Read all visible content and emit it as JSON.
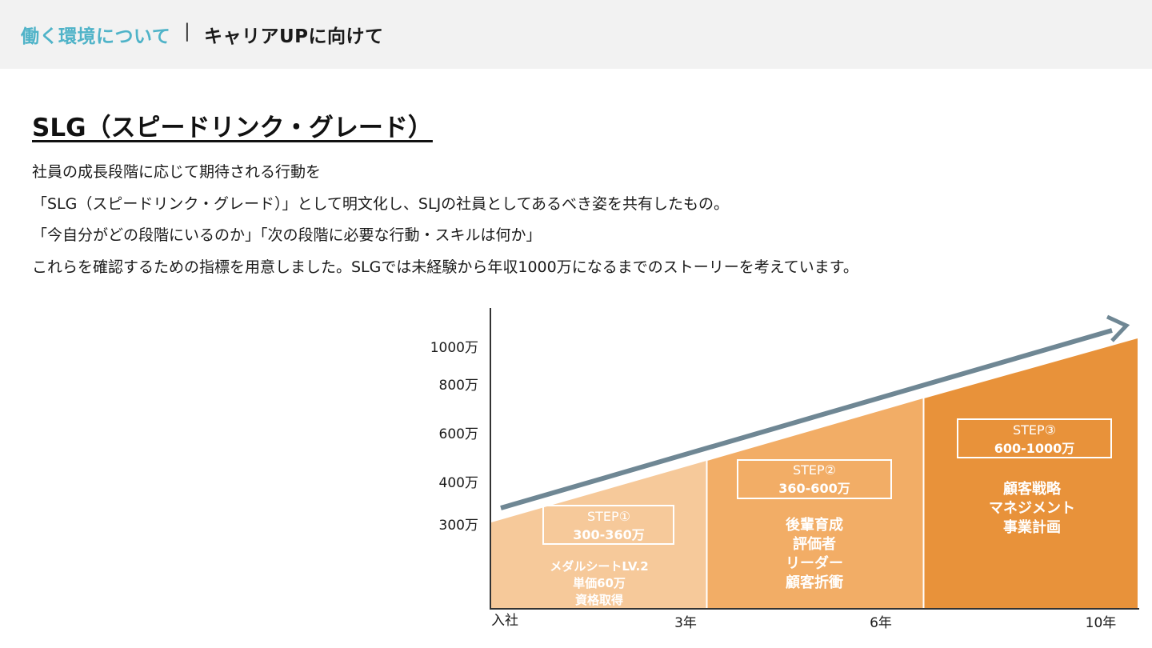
{
  "header": {
    "section": "働く環境について",
    "separator": "|",
    "page": "キャリアUPに向けて"
  },
  "title": "SLG（スピードリンク・グレード）",
  "description": [
    "社員の成長段階に応じて期待される行動を",
    "「SLG（スピードリンク・グレード）」として明文化し、SLJの社員としてあるべき姿を共有したもの。",
    "「今自分がどの段階にいるのか」「次の段階に必要な行動・スキルは何か」",
    "これらを確認するための指標を用意しました。SLGでは未経験から年収1000万になるまでのストーリーを考えています。"
  ],
  "chart_data": {
    "type": "area",
    "y_tick_labels": [
      "1000万",
      "800万",
      "600万",
      "400万",
      "300万"
    ],
    "x_tick_labels": [
      "入社",
      "3年",
      "6年",
      "10年"
    ],
    "steps": [
      {
        "label": "STEP①",
        "range": "300-360万",
        "items": [
          "メダルシートLV.2",
          "単価60万",
          "資格取得"
        ],
        "color": "#f6c99a"
      },
      {
        "label": "STEP②",
        "range": "360-600万",
        "items": [
          "後輩育成",
          "評価者",
          "リーダー",
          "顧客折衝"
        ],
        "color": "#f2ad66"
      },
      {
        "label": "STEP③",
        "range": "600-1000万",
        "items": [
          "顧客戦略",
          "マネジメント",
          "事業計画"
        ],
        "color": "#e8923a"
      }
    ],
    "arrow_color": "#6f8794",
    "axis_color": "#333333"
  }
}
